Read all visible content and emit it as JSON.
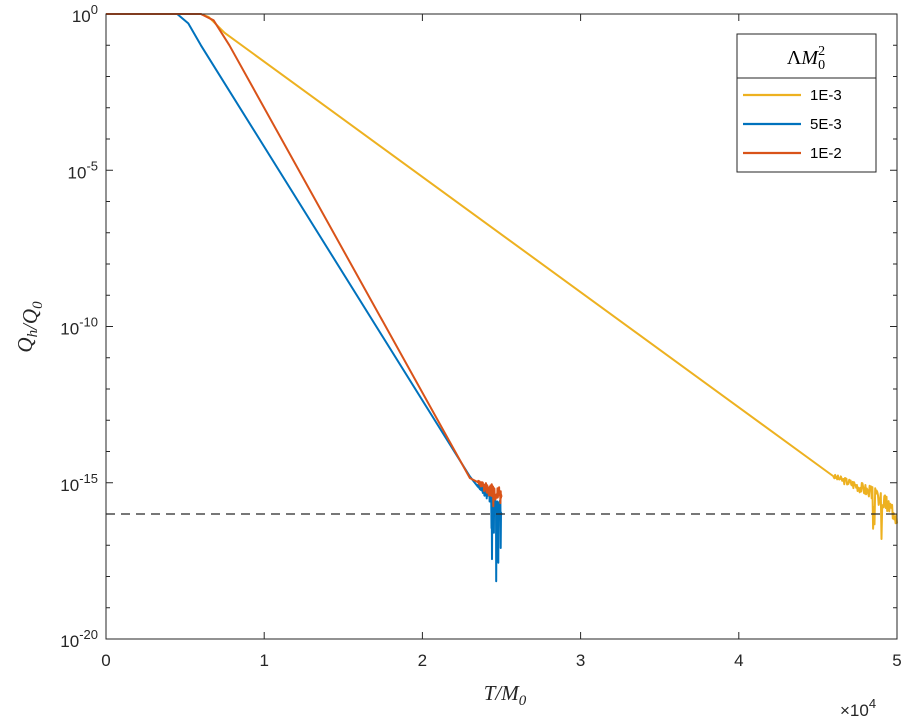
{
  "chart_data": {
    "type": "line",
    "title": "",
    "xlabel": "T/M_0",
    "ylabel": "Q_h/Q_0",
    "xlim": [
      0,
      5
    ],
    "x_multiplier_label": "×10",
    "x_multiplier_exponent": "4",
    "y_scale": "log",
    "ylim_exponents": [
      -20,
      0
    ],
    "x_ticks": [
      {
        "value": 0,
        "label": "0"
      },
      {
        "value": 1,
        "label": "1"
      },
      {
        "value": 2,
        "label": "2"
      },
      {
        "value": 3,
        "label": "3"
      },
      {
        "value": 4,
        "label": "4"
      },
      {
        "value": 5,
        "label": "5"
      }
    ],
    "y_ticks": [
      {
        "exponent": 0,
        "base": "10",
        "exp_label": "0"
      },
      {
        "exponent": -5,
        "base": "10",
        "exp_label": "-5"
      },
      {
        "exponent": -10,
        "base": "10",
        "exp_label": "-10"
      },
      {
        "exponent": -15,
        "base": "10",
        "exp_label": "-15"
      },
      {
        "exponent": -20,
        "base": "10",
        "exp_label": "-20"
      }
    ],
    "grid": false,
    "legend": {
      "placement": "top-right",
      "title": "ΛM_0^2",
      "title_parts": {
        "lambda": "Λ",
        "m": "M",
        "sub": "0",
        "sup": "2"
      }
    },
    "reference_line": {
      "style": "dashed",
      "y_exponent": -16
    },
    "series": [
      {
        "name": "1E-3",
        "color": "#EDB120",
        "points_log10": [
          [
            0,
            0
          ],
          [
            0.6,
            0
          ],
          [
            0.65,
            -0.1
          ],
          [
            0.75,
            -0.6
          ],
          [
            4.6,
            -14.8
          ],
          [
            4.75,
            -15.1
          ],
          [
            4.85,
            -15.35
          ],
          [
            4.95,
            -15.75
          ],
          [
            5.0,
            -16.0
          ]
        ],
        "noise_start": 4.6,
        "noise_floor": -16.0,
        "noise_min": -17.6
      },
      {
        "name": "5E-3",
        "color": "#0072BD",
        "points_log10": [
          [
            0,
            0
          ],
          [
            0.45,
            0
          ],
          [
            0.52,
            -0.3
          ],
          [
            0.6,
            -1.0
          ],
          [
            2.3,
            -14.8
          ],
          [
            2.38,
            -15.2
          ],
          [
            2.45,
            -15.6
          ],
          [
            2.5,
            -15.9
          ]
        ],
        "noise_start": 2.35,
        "noise_floor": -15.9,
        "noise_min": -18.7
      },
      {
        "name": "1E-2",
        "color": "#D95319",
        "points_log10": [
          [
            0,
            0
          ],
          [
            0.6,
            0
          ],
          [
            0.68,
            -0.2
          ],
          [
            0.78,
            -1.0
          ],
          [
            2.3,
            -14.85
          ],
          [
            2.38,
            -15.1
          ],
          [
            2.45,
            -15.3
          ],
          [
            2.5,
            -15.4
          ]
        ],
        "noise_start": 2.35,
        "noise_floor": -15.4,
        "noise_min": -15.8
      }
    ]
  }
}
